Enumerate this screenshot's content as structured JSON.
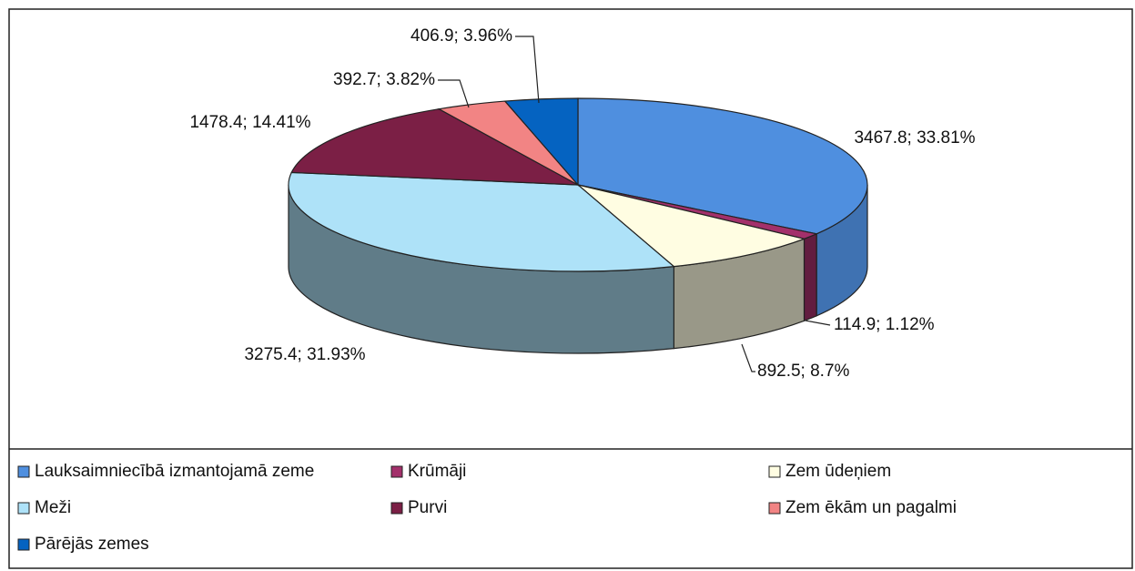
{
  "chart_data": {
    "type": "pie3d",
    "categories": [
      "Lauksaimniecībā izmantojamā zeme",
      "Krūmāji",
      "Zem ūdeņiem",
      "Meži",
      "Purvi",
      "Zem ēkām un pagalmi",
      "Pārējās zemes"
    ],
    "values": [
      3467.8,
      114.9,
      892.5,
      3275.4,
      1478.4,
      392.7,
      406.9
    ],
    "value_labels": [
      "3467.8; 33.81%",
      "114.9; 1.12%",
      "892.5; 8.7%",
      "3275.4; 31.93%",
      "1478.4; 14.41%",
      "392.7; 3.82%",
      "406.9; 3.96%"
    ],
    "colors": [
      "#4f8fdf",
      "#a3306b",
      "#fffde2",
      "#aee2f8",
      "#7b1f45",
      "#f28484",
      "#0563c1"
    ],
    "legend": "bottom"
  }
}
